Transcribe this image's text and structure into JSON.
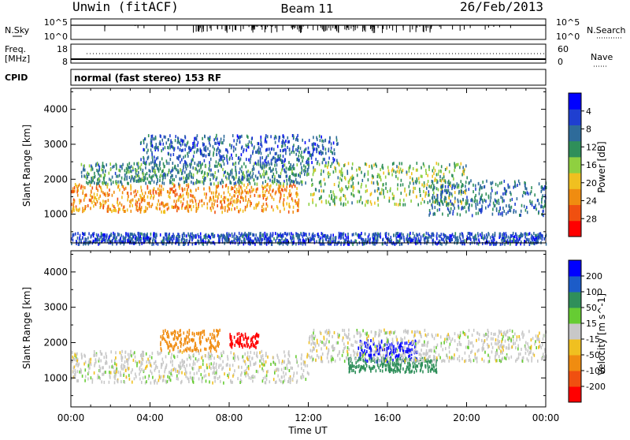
{
  "header": {
    "station": "Unwin (fitACF)",
    "beam": "Beam 11",
    "date": "26/Feb/2013"
  },
  "nsky_panel": {
    "left_label": "N.Sky",
    "right_label": "N.Search",
    "left_ticks": [
      "10^5",
      "10^0"
    ],
    "right_ticks": [
      "10^5",
      "10^0"
    ]
  },
  "freq_panel": {
    "left_label_1": "Freq.",
    "left_label_2": "[MHz]",
    "left_ticks": [
      "18",
      "8"
    ],
    "right_label": "Nave",
    "right_ticks": [
      "60",
      "0"
    ]
  },
  "cpid": {
    "label": "CPID",
    "value": "normal (fast stereo) 153 RF"
  },
  "chart_data": [
    {
      "type": "heatmap",
      "title": "",
      "xlabel": "Time UT",
      "ylabel": "Slant Range [km]",
      "x_ticks": [
        "00:00",
        "04:00",
        "08:00",
        "12:00",
        "16:00",
        "20:00",
        "00:00"
      ],
      "xlim_hours": [
        0,
        24
      ],
      "y_ticks": [
        "1000",
        "2000",
        "3000",
        "4000"
      ],
      "ylim": [
        180,
        4600
      ],
      "colorbar": {
        "label": "Power [dB]",
        "ticks": [
          "4",
          "8",
          "12",
          "16",
          "20",
          "24",
          "28"
        ],
        "range": [
          0,
          30
        ],
        "colors": [
          "#0000ff",
          "#1f3fd0",
          "#2e6b9a",
          "#2f8f5a",
          "#8fd040",
          "#f0c020",
          "#f08c10",
          "#f05010",
          "#ff0000"
        ]
      },
      "features": [
        {
          "name": "main-band",
          "time_start": 0,
          "time_end": 11.5,
          "range_start": 1100,
          "range_end": 1900,
          "power": 22
        },
        {
          "name": "upper-band",
          "time_start": 0.5,
          "time_end": 12,
          "range_start": 1900,
          "range_end": 2500,
          "power": 10
        },
        {
          "name": "high-patch",
          "time_start": 3.5,
          "time_end": 13.5,
          "range_start": 2500,
          "range_end": 3300,
          "power": 6
        },
        {
          "name": "afternoon-structure",
          "time_start": 12,
          "time_end": 20,
          "range_start": 1300,
          "range_end": 2500,
          "power": 14
        },
        {
          "name": "evening-band",
          "time_start": 18,
          "time_end": 24,
          "range_start": 1000,
          "range_end": 2000,
          "power": 8
        },
        {
          "name": "near-range",
          "time_start": 0,
          "time_end": 24,
          "range_start": 180,
          "range_end": 500,
          "power": 5
        }
      ]
    },
    {
      "type": "heatmap",
      "title": "",
      "xlabel": "Time UT",
      "ylabel": "Slant Range [km]",
      "x_ticks": [
        "00:00",
        "04:00",
        "08:00",
        "12:00",
        "16:00",
        "20:00",
        "00:00"
      ],
      "xlim_hours": [
        0,
        24
      ],
      "y_ticks": [
        "1000",
        "2000",
        "3000",
        "4000"
      ],
      "ylim": [
        180,
        4600
      ],
      "colorbar": {
        "label": "Velocity [m s^-1]",
        "ticks": [
          "200",
          "100",
          "50",
          "15",
          "-15",
          "-50",
          "-100",
          "-200"
        ],
        "range": [
          -250,
          250
        ],
        "colors": [
          "#0000ff",
          "#1c5cc8",
          "#2f8f5a",
          "#66cc33",
          "#c8c8c8",
          "#f0c020",
          "#f08c10",
          "#f05010",
          "#ff0000"
        ]
      },
      "features": [
        {
          "name": "ground-scatter",
          "time_start": 0,
          "time_end": 12,
          "range_start": 900,
          "range_end": 1800,
          "velocity": 0
        },
        {
          "name": "westward-patch",
          "time_start": 4.5,
          "time_end": 7.5,
          "range_start": 1800,
          "range_end": 2400,
          "velocity": -80
        },
        {
          "name": "red-patch",
          "time_start": 8,
          "time_end": 9.5,
          "range_start": 1900,
          "range_end": 2300,
          "velocity": -220
        },
        {
          "name": "blue-patch",
          "time_start": 14.5,
          "time_end": 17.5,
          "range_start": 1500,
          "range_end": 2100,
          "velocity": 200
        },
        {
          "name": "green-band",
          "time_start": 14,
          "time_end": 18.5,
          "range_start": 1200,
          "range_end": 1600,
          "velocity": 50
        },
        {
          "name": "grey-upper",
          "time_start": 12,
          "time_end": 24,
          "range_start": 1500,
          "range_end": 2400,
          "velocity": 0
        }
      ]
    }
  ]
}
